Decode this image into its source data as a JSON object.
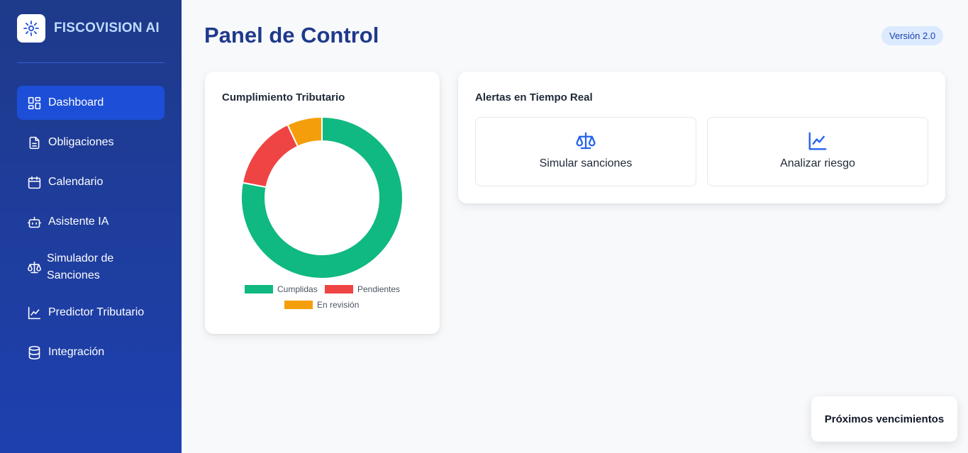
{
  "brand": {
    "name": "FISCOVISION AI",
    "logo_icon": "sparkle-icon"
  },
  "sidebar": {
    "items": [
      {
        "label": "Dashboard",
        "icon": "dashboard-grid-icon",
        "active": true
      },
      {
        "label": "Obligaciones",
        "icon": "document-icon"
      },
      {
        "label": "Calendario",
        "icon": "calendar-icon"
      },
      {
        "label": "Asistente IA",
        "icon": "robot-icon"
      },
      {
        "label": "Simulador de Sanciones",
        "icon": "scale-icon"
      },
      {
        "label": "Predictor Tributario",
        "icon": "line-chart-icon"
      },
      {
        "label": "Integración",
        "icon": "database-icon"
      }
    ]
  },
  "header": {
    "title": "Panel de Control",
    "version": "Versión 2.0"
  },
  "compliance_card": {
    "title": "Cumplimiento Tributario"
  },
  "chart_data": {
    "type": "pie",
    "variant": "doughnut",
    "title": "Cumplimiento Tributario",
    "categories": [
      "Cumplidas",
      "Pendientes",
      "En revisión"
    ],
    "values": [
      78,
      15,
      7
    ],
    "colors": [
      "#10b981",
      "#ef4444",
      "#f59e0b"
    ],
    "legend": "bottom"
  },
  "alerts_card": {
    "title": "Alertas en Tiempo Real",
    "actions": [
      {
        "label": "Simular sanciones",
        "icon": "scale-icon"
      },
      {
        "label": "Analizar riesgo",
        "icon": "trend-chart-icon"
      }
    ]
  },
  "upcoming": {
    "label": "Próximos vencimientos"
  },
  "colors": {
    "accent": "#1d4ed8",
    "sidebar": "#1e3a8a",
    "title": "#1e3a8a"
  }
}
